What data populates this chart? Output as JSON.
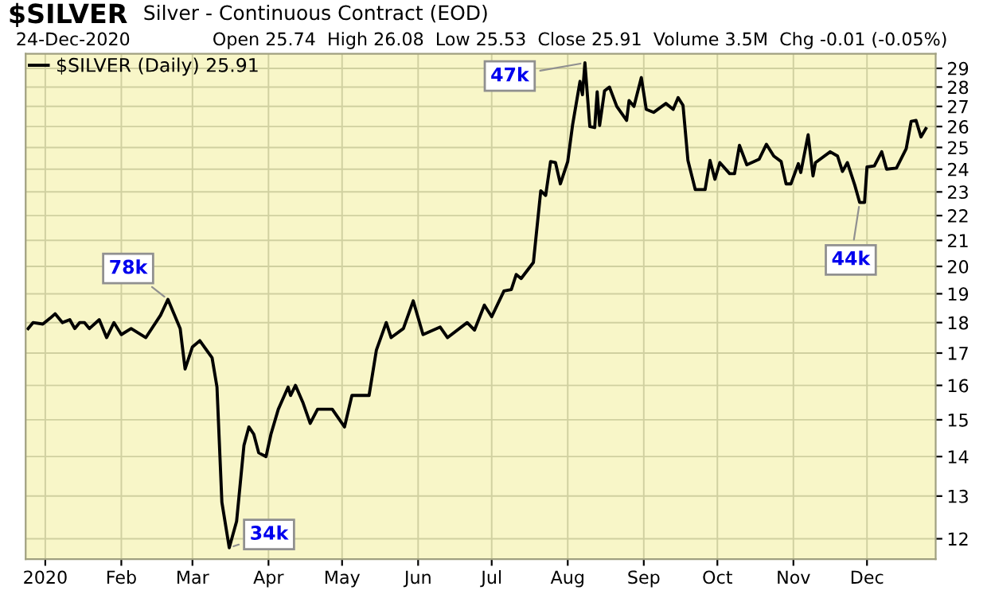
{
  "chart_data": {
    "type": "line",
    "title": "$SILVER",
    "subtitle": "Silver - Continuous Contract (EOD)",
    "annotations": [
      "24-Dec-2020",
      "Open 25.74  High 26.08  Low 25.53  Close 25.91  Volume 3.5M  Chg -0.01 (-0.05%)",
      {
        "text": "78k",
        "x": "2020-02-20",
        "y": 18.8
      },
      {
        "text": "34k",
        "x": "2020-03-16",
        "y": 11.8
      },
      {
        "text": "47k",
        "x": "2020-08-08",
        "y": 29.3
      },
      {
        "text": "44k",
        "x": "2020-11-28",
        "y": 22.55
      }
    ],
    "series": [
      {
        "name": "$SILVER (Daily) 25.91",
        "color": "#000000",
        "x": [
          "2019-12-25",
          "2019-12-27",
          "2019-12-31",
          "2020-01-03",
          "2020-01-05",
          "2020-01-08",
          "2020-01-11",
          "2020-01-13",
          "2020-01-15",
          "2020-01-17",
          "2020-01-19",
          "2020-01-23",
          "2020-01-26",
          "2020-01-29",
          "2020-02-01",
          "2020-02-05",
          "2020-02-08",
          "2020-02-11",
          "2020-02-17",
          "2020-02-20",
          "2020-02-25",
          "2020-02-27",
          "2020-03-01",
          "2020-03-04",
          "2020-03-09",
          "2020-03-11",
          "2020-03-13",
          "2020-03-16",
          "2020-03-19",
          "2020-03-22",
          "2020-03-24",
          "2020-03-26",
          "2020-03-28",
          "2020-03-31",
          "2020-04-02",
          "2020-04-05",
          "2020-04-09",
          "2020-04-10",
          "2020-04-12",
          "2020-04-15",
          "2020-04-18",
          "2020-04-21",
          "2020-04-27",
          "2020-05-02",
          "2020-05-05",
          "2020-05-12",
          "2020-05-15",
          "2020-05-19",
          "2020-05-21",
          "2020-05-26",
          "2020-05-30",
          "2020-06-03",
          "2020-06-10",
          "2020-06-13",
          "2020-06-21",
          "2020-06-24",
          "2020-06-28",
          "2020-07-01",
          "2020-07-06",
          "2020-07-09",
          "2020-07-11",
          "2020-07-13",
          "2020-07-18",
          "2020-07-21",
          "2020-07-23",
          "2020-07-25",
          "2020-07-27",
          "2020-07-29",
          "2020-08-01",
          "2020-08-03",
          "2020-08-06",
          "2020-08-07",
          "2020-08-08",
          "2020-08-10",
          "2020-08-12",
          "2020-08-13",
          "2020-08-14",
          "2020-08-16",
          "2020-08-18",
          "2020-08-21",
          "2020-08-25",
          "2020-08-26",
          "2020-08-28",
          "2020-08-31",
          "2020-09-02",
          "2020-09-05",
          "2020-09-10",
          "2020-09-13",
          "2020-09-15",
          "2020-09-17",
          "2020-09-19",
          "2020-09-22",
          "2020-09-26",
          "2020-09-28",
          "2020-09-30",
          "2020-10-02",
          "2020-10-06",
          "2020-10-08",
          "2020-10-10",
          "2020-10-13",
          "2020-10-18",
          "2020-10-21",
          "2020-10-24",
          "2020-10-27",
          "2020-10-29",
          "2020-10-31",
          "2020-11-03",
          "2020-11-04",
          "2020-11-07",
          "2020-11-09",
          "2020-11-10",
          "2020-11-16",
          "2020-11-19",
          "2020-11-21",
          "2020-11-23",
          "2020-11-26",
          "2020-11-28",
          "2020-11-30",
          "2020-12-01",
          "2020-12-04",
          "2020-12-07",
          "2020-12-09",
          "2020-12-13",
          "2020-12-17",
          "2020-12-19",
          "2020-12-21",
          "2020-12-23",
          "2020-12-25"
        ],
        "values": [
          17.8,
          18.0,
          17.95,
          18.15,
          18.3,
          18.0,
          18.1,
          17.8,
          18.0,
          18.0,
          17.8,
          18.1,
          17.5,
          18.0,
          17.6,
          17.8,
          17.65,
          17.5,
          18.25,
          18.8,
          17.8,
          16.5,
          17.2,
          17.4,
          16.85,
          15.95,
          12.85,
          11.8,
          12.4,
          14.3,
          14.8,
          14.6,
          14.1,
          14.0,
          14.6,
          15.3,
          15.95,
          15.7,
          16.0,
          15.5,
          14.9,
          15.3,
          15.3,
          14.8,
          15.7,
          15.7,
          17.1,
          18.0,
          17.5,
          17.8,
          18.75,
          17.6,
          17.85,
          17.5,
          18.0,
          17.75,
          18.6,
          18.2,
          19.1,
          19.15,
          19.7,
          19.55,
          20.15,
          23.05,
          22.85,
          24.35,
          24.3,
          23.35,
          24.35,
          26.1,
          28.3,
          27.6,
          29.3,
          26.0,
          25.95,
          27.75,
          26.05,
          27.8,
          28.0,
          27.0,
          26.3,
          27.3,
          27.0,
          28.5,
          26.85,
          26.7,
          27.15,
          26.85,
          27.45,
          27.05,
          24.4,
          23.1,
          23.1,
          24.4,
          23.55,
          24.3,
          23.8,
          23.8,
          25.1,
          24.2,
          24.45,
          25.15,
          24.6,
          24.35,
          23.35,
          23.35,
          24.25,
          23.85,
          25.6,
          23.7,
          24.3,
          24.8,
          24.6,
          23.9,
          24.3,
          23.3,
          22.55,
          22.55,
          24.1,
          24.15,
          24.8,
          24.0,
          24.05,
          24.95,
          26.25,
          26.3,
          25.5,
          25.9
        ]
      }
    ],
    "xlim": [
      "2019-12-24",
      "2020-12-29"
    ],
    "xticks": [
      {
        "value": "2020-01-01",
        "label": "2020"
      },
      {
        "value": "2020-02-01",
        "label": "Feb"
      },
      {
        "value": "2020-03-01",
        "label": "Mar"
      },
      {
        "value": "2020-04-01",
        "label": "Apr"
      },
      {
        "value": "2020-05-01",
        "label": "May"
      },
      {
        "value": "2020-06-01",
        "label": "Jun"
      },
      {
        "value": "2020-07-01",
        "label": "Jul"
      },
      {
        "value": "2020-08-01",
        "label": "Aug"
      },
      {
        "value": "2020-09-01",
        "label": "Sep"
      },
      {
        "value": "2020-10-01",
        "label": "Oct"
      },
      {
        "value": "2020-11-01",
        "label": "Nov"
      },
      {
        "value": "2020-12-01",
        "label": "Dec"
      }
    ],
    "ylim": [
      11.55,
      29.8
    ],
    "yticks": [
      12,
      13,
      14,
      15,
      16,
      17,
      18,
      19,
      20,
      21,
      22,
      23,
      24,
      25,
      26,
      27,
      28,
      29
    ],
    "log": "y",
    "grid": true,
    "legend": "top left",
    "line_style": "solid",
    "marker": "none"
  }
}
